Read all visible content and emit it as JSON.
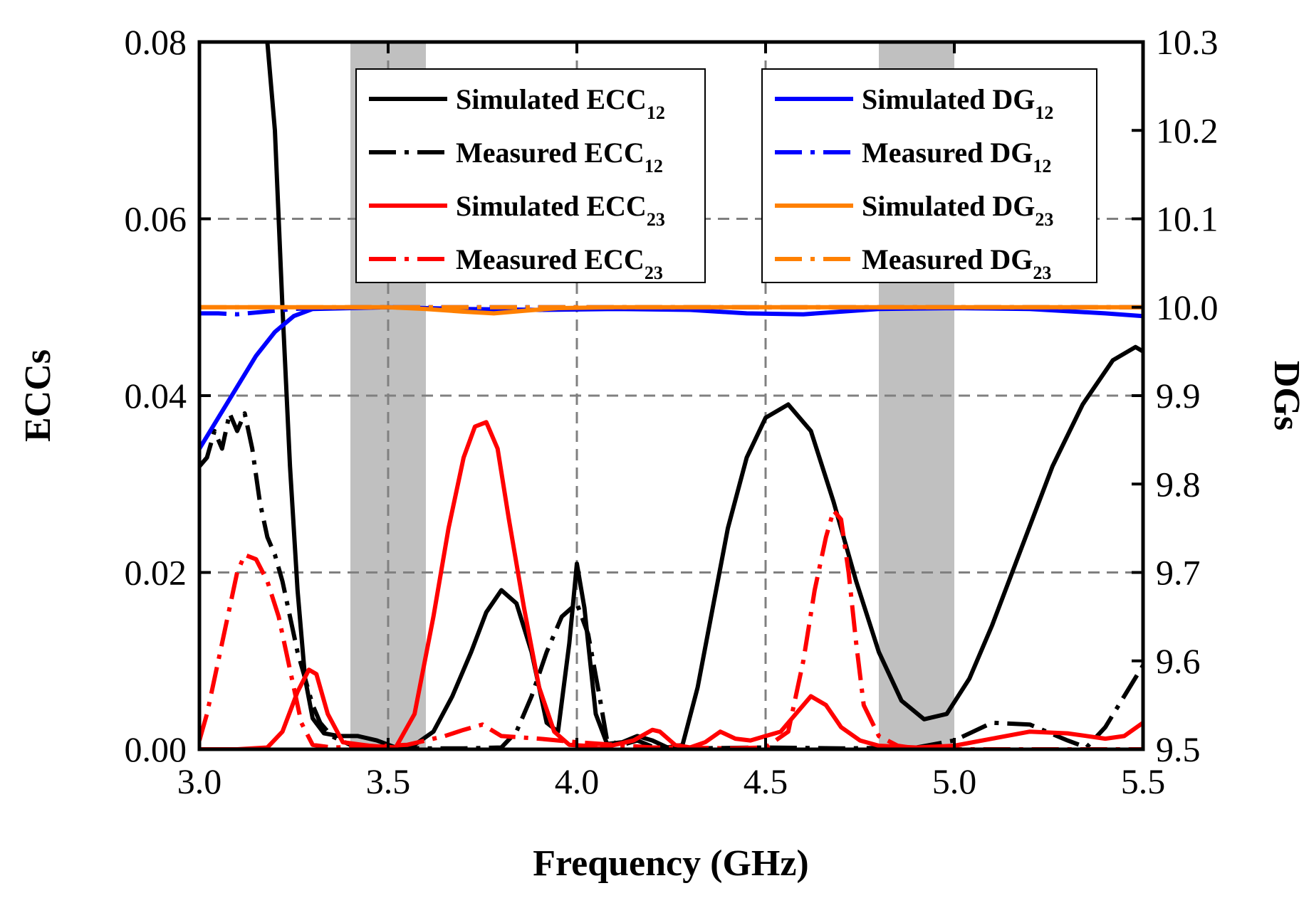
{
  "chart_data": {
    "type": "line",
    "title": "",
    "xlabel": "Frequency (GHz)",
    "ylabel_left": "ECCs",
    "ylabel_right": "DGs",
    "xlim": [
      3.0,
      5.5
    ],
    "ylim_left": [
      0.0,
      0.08
    ],
    "ylim_right": [
      9.5,
      10.3
    ],
    "x_ticks": [
      {
        "value": 3.0,
        "label": "3.0"
      },
      {
        "value": 3.5,
        "label": "3.5"
      },
      {
        "value": 4.0,
        "label": "4.0"
      },
      {
        "value": 4.5,
        "label": "4.5"
      },
      {
        "value": 5.0,
        "label": "5.0"
      },
      {
        "value": 5.5,
        "label": "5.5"
      }
    ],
    "y_left_ticks": [
      {
        "value": 0.0,
        "label": "0.00"
      },
      {
        "value": 0.02,
        "label": "0.02"
      },
      {
        "value": 0.04,
        "label": "0.04"
      },
      {
        "value": 0.06,
        "label": "0.06"
      },
      {
        "value": 0.08,
        "label": "0.08"
      }
    ],
    "y_right_ticks": [
      {
        "value": 9.5,
        "label": "9.5"
      },
      {
        "value": 9.6,
        "label": "9.6"
      },
      {
        "value": 9.7,
        "label": "9.7"
      },
      {
        "value": 9.8,
        "label": "9.8"
      },
      {
        "value": 9.9,
        "label": "9.9"
      },
      {
        "value": 10.0,
        "label": "10.0"
      },
      {
        "value": 10.1,
        "label": "10.1"
      },
      {
        "value": 10.2,
        "label": "10.2"
      },
      {
        "value": 10.3,
        "label": "10.3"
      }
    ],
    "grid": "dashed",
    "grid_x": [
      3.5,
      4.0,
      4.5
    ],
    "grid_y": [
      0.02,
      0.04,
      0.06
    ],
    "shaded_bands": [
      [
        3.4,
        3.6
      ],
      [
        4.8,
        5.0
      ]
    ],
    "legends": [
      {
        "placement": "top-center",
        "entries": [
          {
            "name": "Simulated ECC",
            "sub": "12",
            "color": "#000000",
            "style": "solid"
          },
          {
            "name": "Measured ECC",
            "sub": "12",
            "color": "#000000",
            "style": "dashdot"
          },
          {
            "name": "Simulated ECC",
            "sub": "23",
            "color": "#ff0000",
            "style": "solid"
          },
          {
            "name": "Measured ECC",
            "sub": "23",
            "color": "#ff0000",
            "style": "dashdot"
          }
        ]
      },
      {
        "placement": "top-right",
        "entries": [
          {
            "name": "Simulated DG",
            "sub": "12",
            "color": "#0000ff",
            "style": "solid"
          },
          {
            "name": "Measured DG",
            "sub": "12",
            "color": "#0000ff",
            "style": "dashdot"
          },
          {
            "name": "Simulated DG",
            "sub": "23",
            "color": "#ff8000",
            "style": "solid"
          },
          {
            "name": "Measured DG",
            "sub": "23",
            "color": "#ff8000",
            "style": "dashdot"
          }
        ]
      }
    ],
    "series": [
      {
        "name": "Simulated ECC12",
        "axis": "left",
        "color": "#000000",
        "style": "solid",
        "x": [
          3.18,
          3.2,
          3.22,
          3.24,
          3.26,
          3.28,
          3.3,
          3.33,
          3.37,
          3.42,
          3.47,
          3.52,
          3.57,
          3.62,
          3.67,
          3.72,
          3.76,
          3.8,
          3.84,
          3.88,
          3.92,
          3.95,
          3.98,
          4.0,
          4.02,
          4.05,
          4.08,
          4.12,
          4.16,
          4.2,
          4.24,
          4.28,
          4.32,
          4.36,
          4.4,
          4.45,
          4.5,
          4.56,
          4.62,
          4.68,
          4.74,
          4.8,
          4.86,
          4.92,
          4.98,
          5.04,
          5.1,
          5.18,
          5.26,
          5.34,
          5.42,
          5.48,
          5.5
        ],
        "y": [
          0.08,
          0.07,
          0.05,
          0.032,
          0.018,
          0.008,
          0.0035,
          0.0018,
          0.0015,
          0.0015,
          0.001,
          0.0002,
          0.0005,
          0.002,
          0.006,
          0.011,
          0.0155,
          0.018,
          0.0165,
          0.011,
          0.003,
          0.002,
          0.012,
          0.021,
          0.016,
          0.004,
          0.0006,
          0.0008,
          0.0015,
          0.001,
          0.0002,
          0.0005,
          0.007,
          0.016,
          0.025,
          0.033,
          0.0375,
          0.039,
          0.036,
          0.028,
          0.019,
          0.011,
          0.0055,
          0.0034,
          0.004,
          0.008,
          0.014,
          0.023,
          0.032,
          0.039,
          0.044,
          0.0455,
          0.045
        ]
      },
      {
        "name": "Measured ECC12",
        "axis": "left",
        "color": "#000000",
        "style": "dashdot",
        "x": [
          3.0,
          3.02,
          3.04,
          3.06,
          3.08,
          3.1,
          3.12,
          3.14,
          3.16,
          3.18,
          3.2,
          3.22,
          3.24,
          3.26,
          3.28,
          3.3,
          3.32,
          3.35,
          3.4,
          3.5,
          3.6,
          3.7,
          3.8,
          3.84,
          3.88,
          3.92,
          3.96,
          4.0,
          4.03,
          4.06,
          4.08,
          4.12,
          4.16,
          4.2,
          4.3,
          4.5,
          4.7,
          4.9,
          5.0,
          5.05,
          5.1,
          5.2,
          5.3,
          5.35,
          5.4,
          5.45,
          5.5
        ],
        "y": [
          0.032,
          0.033,
          0.036,
          0.034,
          0.038,
          0.036,
          0.038,
          0.034,
          0.028,
          0.024,
          0.022,
          0.019,
          0.015,
          0.011,
          0.008,
          0.005,
          0.003,
          0.0015,
          0.0005,
          0.0002,
          0.0001,
          0.0001,
          0.0002,
          0.002,
          0.006,
          0.011,
          0.015,
          0.0165,
          0.013,
          0.006,
          0.001,
          0.0005,
          0.001,
          0.0003,
          0.0001,
          0.0002,
          0.0001,
          0.0002,
          0.001,
          0.002,
          0.003,
          0.0028,
          0.001,
          0.0002,
          0.0025,
          0.006,
          0.0095
        ]
      },
      {
        "name": "Simulated ECC23",
        "axis": "left",
        "color": "#ff0000",
        "style": "solid",
        "x": [
          3.0,
          3.1,
          3.18,
          3.22,
          3.26,
          3.29,
          3.31,
          3.34,
          3.38,
          3.45,
          3.52,
          3.57,
          3.62,
          3.66,
          3.7,
          3.73,
          3.76,
          3.79,
          3.82,
          3.86,
          3.9,
          3.94,
          3.98,
          4.02,
          4.06,
          4.1,
          4.15,
          4.2,
          4.22,
          4.26,
          4.3,
          4.34,
          4.38,
          4.42,
          4.46,
          4.5,
          4.54,
          4.58,
          4.62,
          4.66,
          4.7,
          4.75,
          4.8,
          4.9,
          5.0,
          5.1,
          5.2,
          5.3,
          5.4,
          5.45,
          5.5
        ],
        "y": [
          0.0,
          0.0,
          0.0002,
          0.002,
          0.0065,
          0.009,
          0.0085,
          0.004,
          0.0008,
          0.0004,
          0.0002,
          0.004,
          0.015,
          0.025,
          0.033,
          0.0365,
          0.037,
          0.034,
          0.026,
          0.016,
          0.007,
          0.002,
          0.0005,
          0.0004,
          0.0001,
          0.0005,
          0.001,
          0.0022,
          0.002,
          0.0005,
          0.0002,
          0.0008,
          0.002,
          0.0012,
          0.001,
          0.0015,
          0.002,
          0.004,
          0.006,
          0.005,
          0.0025,
          0.001,
          0.0004,
          0.0002,
          0.0004,
          0.0012,
          0.002,
          0.0018,
          0.0012,
          0.0015,
          0.003
        ]
      },
      {
        "name": "Measured ECC23",
        "axis": "left",
        "color": "#ff0000",
        "style": "dashdot",
        "x": [
          3.0,
          3.02,
          3.05,
          3.08,
          3.1,
          3.12,
          3.15,
          3.18,
          3.21,
          3.24,
          3.27,
          3.3,
          3.35,
          3.45,
          3.55,
          3.65,
          3.7,
          3.75,
          3.8,
          3.9,
          4.0,
          4.1,
          4.2,
          4.3,
          4.4,
          4.5,
          4.56,
          4.6,
          4.63,
          4.66,
          4.68,
          4.7,
          4.72,
          4.74,
          4.76,
          4.8,
          4.85,
          4.9,
          5.0,
          5.2,
          5.5
        ],
        "y": [
          0.001,
          0.004,
          0.01,
          0.016,
          0.02,
          0.022,
          0.0215,
          0.019,
          0.015,
          0.009,
          0.003,
          0.0005,
          0.0002,
          0.0003,
          0.0005,
          0.0015,
          0.0022,
          0.0028,
          0.0015,
          0.0012,
          0.0008,
          0.0005,
          0.0002,
          0.0002,
          0.0001,
          0.0002,
          0.002,
          0.01,
          0.018,
          0.024,
          0.027,
          0.026,
          0.02,
          0.012,
          0.005,
          0.0015,
          0.0004,
          0.0001,
          0.0,
          0.0,
          0.0
        ]
      },
      {
        "name": "Simulated DG12",
        "axis": "right",
        "color": "#0000ff",
        "style": "solid",
        "x": [
          3.0,
          3.05,
          3.1,
          3.15,
          3.2,
          3.25,
          3.3,
          3.4,
          3.5,
          3.7,
          3.9,
          4.1,
          4.3,
          4.45,
          4.6,
          4.8,
          5.0,
          5.2,
          5.4,
          5.5
        ],
        "y": [
          9.84,
          9.875,
          9.91,
          9.945,
          9.972,
          9.99,
          9.998,
          9.999,
          10.0,
          9.998,
          9.997,
          9.998,
          9.997,
          9.993,
          9.992,
          9.998,
          9.999,
          9.998,
          9.993,
          9.99
        ]
      },
      {
        "name": "Measured DG12",
        "axis": "right",
        "color": "#0000ff",
        "style": "dashdot",
        "x": [
          3.0,
          3.05,
          3.1,
          3.15,
          3.2,
          3.25,
          3.3,
          3.4,
          3.6,
          4.0,
          4.5,
          5.0,
          5.5
        ],
        "y": [
          9.993,
          9.993,
          9.992,
          9.994,
          9.996,
          9.998,
          9.999,
          10.0,
          10.0,
          10.0,
          10.0,
          10.0,
          10.0
        ]
      },
      {
        "name": "Simulated DG23",
        "axis": "right",
        "color": "#ff8000",
        "style": "solid",
        "x": [
          3.0,
          3.3,
          3.5,
          3.6,
          3.7,
          3.78,
          3.86,
          3.95,
          4.1,
          4.5,
          5.0,
          5.5
        ],
        "y": [
          10.0,
          10.0,
          10.0,
          9.998,
          9.995,
          9.993,
          9.996,
          9.999,
          10.0,
          10.0,
          10.0,
          10.0
        ]
      },
      {
        "name": "Measured DG23",
        "axis": "right",
        "color": "#ff8000",
        "style": "dashdot",
        "x": [
          3.0,
          3.5,
          4.0,
          4.5,
          5.0,
          5.5
        ],
        "y": [
          10.0,
          10.0,
          10.0,
          10.0,
          10.0,
          10.0
        ]
      }
    ]
  }
}
